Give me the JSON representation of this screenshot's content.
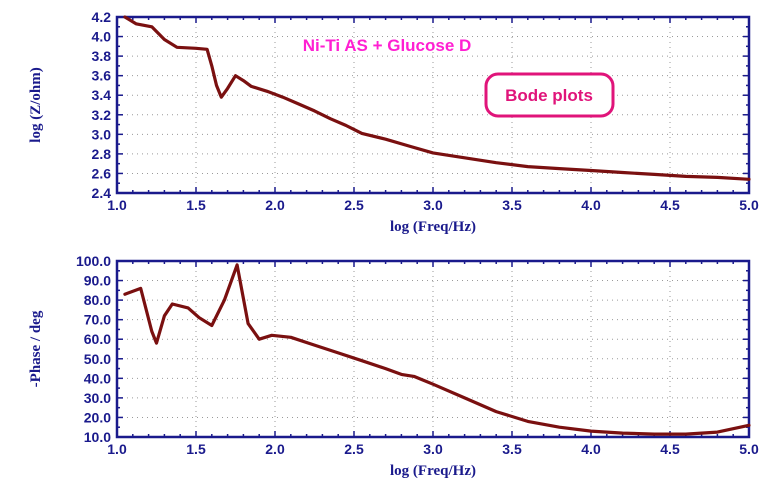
{
  "chart_data": [
    {
      "type": "line",
      "title": "",
      "annotation": "Ni-Ti  AS + Glucose D",
      "boxed_annotation": "Bode plots",
      "xlabel": "log (Freq/Hz)",
      "ylabel": "log (Z/ohm)",
      "xlim": [
        1.0,
        5.0
      ],
      "ylim": [
        2.4,
        4.2
      ],
      "xticks": [
        "1.0",
        "1.5",
        "2.0",
        "2.5",
        "3.0",
        "3.5",
        "4.0",
        "4.5",
        "5.0"
      ],
      "yticks": [
        "2.4",
        "2.6",
        "2.8",
        "3.0",
        "3.2",
        "3.4",
        "3.6",
        "3.8",
        "4.0",
        "4.2"
      ],
      "grid": true,
      "line_color": "#7a1010",
      "series": [
        {
          "x": [
            1.05,
            1.12,
            1.22,
            1.3,
            1.38,
            1.5,
            1.57,
            1.6,
            1.63,
            1.66,
            1.7,
            1.75,
            1.8,
            1.85,
            1.95,
            2.05,
            2.15,
            2.25,
            2.35,
            2.45,
            2.55,
            2.7,
            2.85,
            3.0,
            3.2,
            3.4,
            3.6,
            3.8,
            4.0,
            4.2,
            4.4,
            4.6,
            4.8,
            5.0
          ],
          "y": [
            4.2,
            4.13,
            4.1,
            3.97,
            3.89,
            3.88,
            3.87,
            3.7,
            3.5,
            3.38,
            3.47,
            3.6,
            3.55,
            3.49,
            3.44,
            3.38,
            3.31,
            3.24,
            3.16,
            3.09,
            3.01,
            2.95,
            2.88,
            2.81,
            2.76,
            2.71,
            2.67,
            2.65,
            2.63,
            2.61,
            2.59,
            2.57,
            2.56,
            2.54
          ]
        }
      ]
    },
    {
      "type": "line",
      "title": "",
      "xlabel": "log (Freq/Hz)",
      "ylabel": "-Phase / deg",
      "xlim": [
        1.0,
        5.0
      ],
      "ylim": [
        10.0,
        100.0
      ],
      "xticks": [
        "1.0",
        "1.5",
        "2.0",
        "2.5",
        "3.0",
        "3.5",
        "4.0",
        "4.5",
        "5.0"
      ],
      "yticks": [
        "10.0",
        "20.0",
        "30.0",
        "40.0",
        "50.0",
        "60.0",
        "70.0",
        "80.0",
        "90.0",
        "100.0"
      ],
      "grid": true,
      "line_color": "#7a1010",
      "series": [
        {
          "x": [
            1.05,
            1.15,
            1.22,
            1.25,
            1.3,
            1.35,
            1.45,
            1.52,
            1.6,
            1.68,
            1.76,
            1.83,
            1.9,
            1.98,
            2.1,
            2.25,
            2.4,
            2.55,
            2.7,
            2.8,
            2.88,
            3.0,
            3.2,
            3.4,
            3.6,
            3.8,
            4.0,
            4.2,
            4.4,
            4.6,
            4.8,
            5.0
          ],
          "y": [
            83,
            86,
            64,
            58,
            72,
            78,
            76,
            71,
            67,
            80,
            98,
            68,
            60,
            62,
            61,
            57,
            53,
            49,
            45,
            42,
            41,
            37,
            30,
            23,
            18,
            15,
            13,
            12,
            11.5,
            11.5,
            12.5,
            16
          ]
        }
      ]
    }
  ]
}
